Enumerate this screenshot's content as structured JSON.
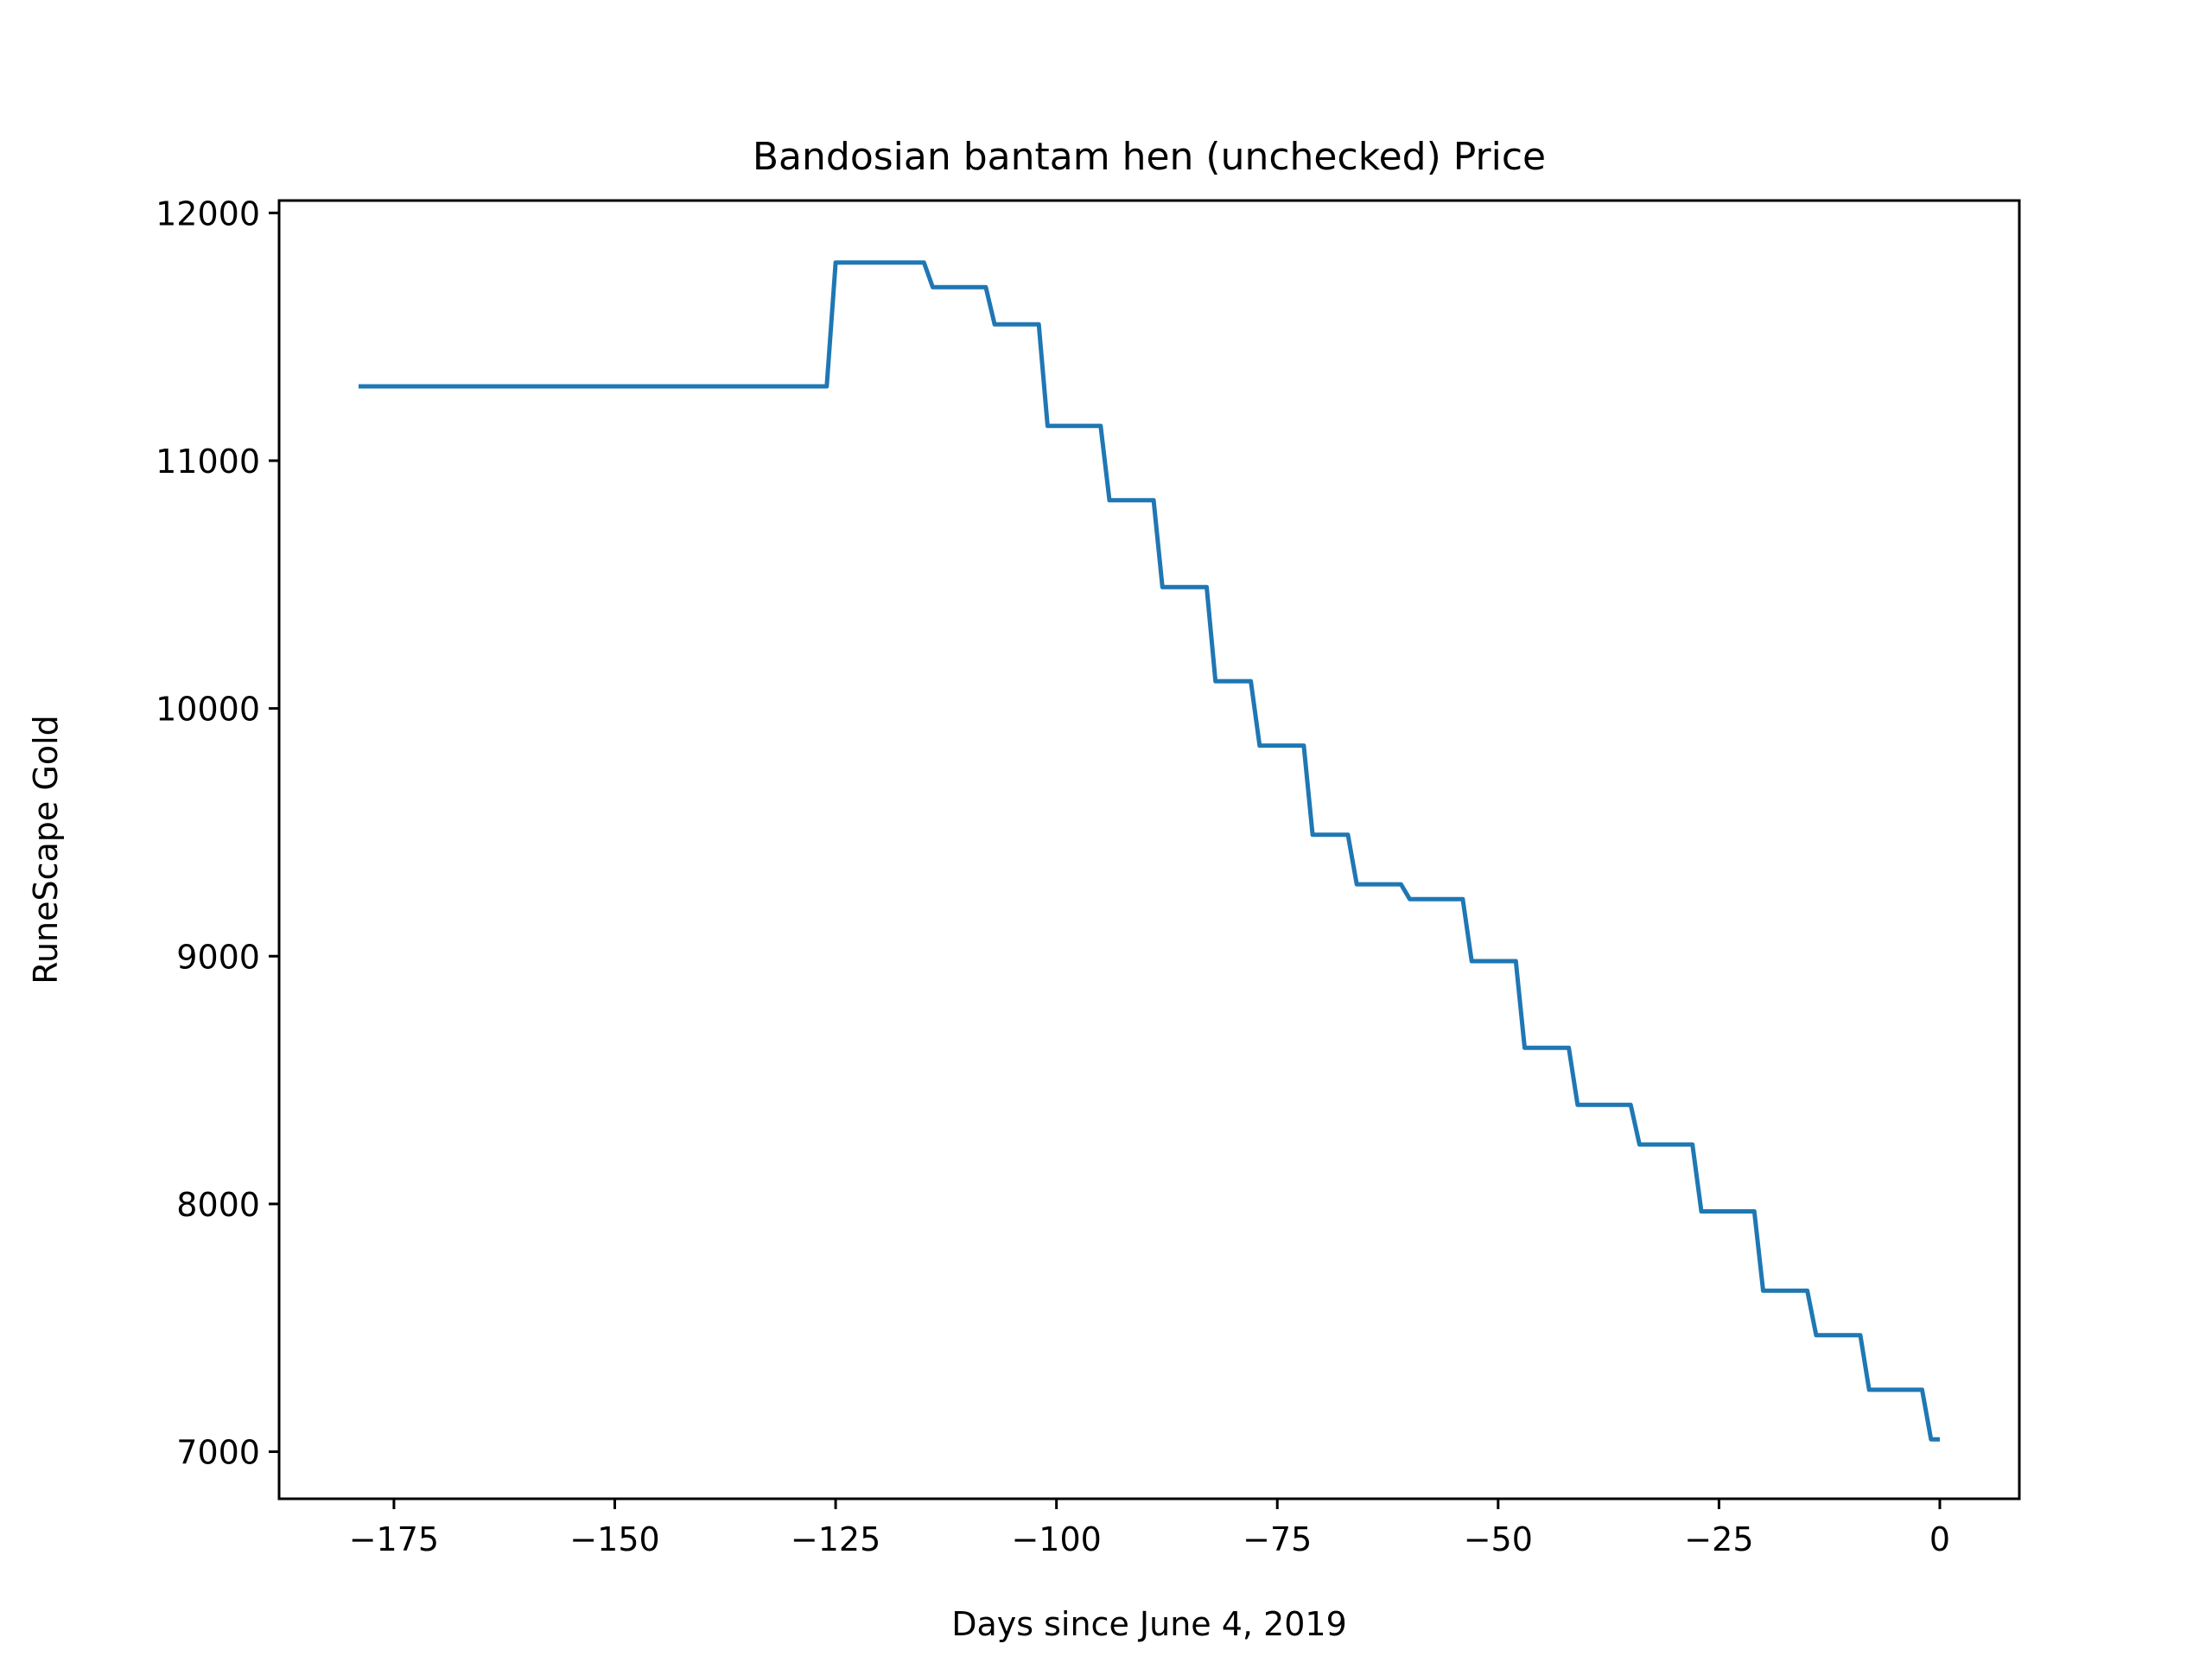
{
  "chart_data": {
    "type": "line",
    "title": "Bandosian bantam hen (unchecked) Price",
    "xlabel": "Days since June 4, 2019",
    "ylabel": "RuneScape Gold",
    "xlim": [
      -188,
      9
    ],
    "ylim": [
      6810,
      12050
    ],
    "x_ticks": [
      -175,
      -150,
      -125,
      -100,
      -75,
      -50,
      -25,
      0
    ],
    "x_tick_labels": [
      "−175",
      "−150",
      "−125",
      "−100",
      "−75",
      "−50",
      "−25",
      "0"
    ],
    "y_ticks": [
      7000,
      8000,
      9000,
      10000,
      11000,
      12000
    ],
    "y_tick_labels": [
      "7000",
      "8000",
      "9000",
      "10000",
      "11000",
      "12000"
    ],
    "grid": false,
    "series": [
      {
        "color": "#1f77b4",
        "x": [
          -179,
          -126,
          -125,
          -115,
          -114,
          -108,
          -107,
          -102,
          -101,
          -95,
          -94,
          -89,
          -88,
          -83,
          -82,
          -78,
          -77,
          -72,
          -71,
          -67,
          -66,
          -61,
          -60,
          -54,
          -53,
          -48,
          -47,
          -42,
          -41,
          -35,
          -34,
          -28,
          -27,
          -21,
          -20,
          -15,
          -14,
          -9,
          -8,
          -2,
          -1,
          0
        ],
        "y": [
          11300,
          11300,
          11800,
          11800,
          11700,
          11700,
          11550,
          11550,
          11140,
          11140,
          10840,
          10840,
          10490,
          10490,
          10110,
          10110,
          9850,
          9850,
          9490,
          9490,
          9290,
          9290,
          9230,
          9230,
          8980,
          8980,
          8630,
          8630,
          8400,
          8400,
          8240,
          8240,
          7970,
          7970,
          7650,
          7650,
          7470,
          7470,
          7250,
          7250,
          7050,
          7050
        ]
      }
    ]
  }
}
